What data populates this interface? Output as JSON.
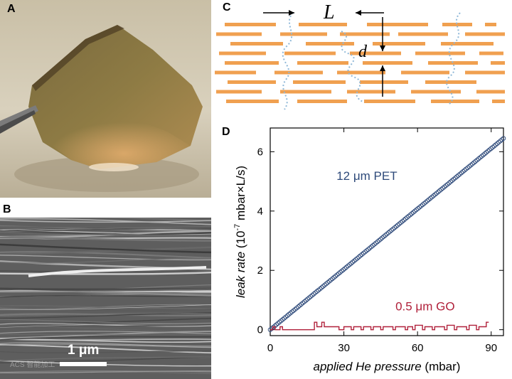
{
  "panels": {
    "a": "A",
    "b": "B",
    "c": "C",
    "d": "D"
  },
  "panel_b": {
    "scalebar_label": "1 μm",
    "watermark": "ACS 智能加工"
  },
  "panel_c": {
    "label_L": "L",
    "label_d": "d",
    "flake_color": "#F0A050",
    "path_color": "#8FB8D8"
  },
  "chart_data": {
    "type": "line",
    "xlabel_italic": "applied He pressure",
    "xlabel_unit": "(mbar)",
    "ylabel_italic": "leak rate",
    "ylabel_unit_pre": "(10",
    "ylabel_unit_exp": "-7",
    "ylabel_unit_post": " mbar×L/s)",
    "xlim": [
      0,
      95
    ],
    "ylim": [
      -0.2,
      6.8
    ],
    "xticks": [
      "0",
      "30",
      "60",
      "90"
    ],
    "yticks": [
      "0",
      "2",
      "4",
      "6"
    ],
    "xtick_values": [
      0,
      30,
      60,
      90
    ],
    "ytick_values": [
      0,
      2,
      4,
      6
    ],
    "series": [
      {
        "name": "12 μm PET",
        "color": "#2E4A7A",
        "marker": "circle",
        "x": [
          0,
          95
        ],
        "y": [
          0,
          6.45
        ]
      },
      {
        "name": "0.5 μm GO",
        "color": "#B0203A",
        "marker": "step",
        "x": [
          0,
          1,
          2,
          4,
          5,
          9,
          17,
          18,
          19,
          21,
          22,
          27,
          28,
          30,
          33,
          34,
          37,
          38,
          41,
          42,
          45,
          46,
          50,
          51,
          55,
          56,
          58,
          59,
          62,
          63,
          66,
          67,
          71,
          72,
          75,
          76,
          80,
          81,
          84,
          85,
          88,
          89
        ],
        "y": [
          0,
          0.1,
          0,
          0.1,
          0,
          0,
          0,
          0.25,
          0.1,
          0.25,
          0.1,
          0.1,
          0,
          0.1,
          0,
          0.1,
          0,
          0.1,
          0,
          0.1,
          0,
          0.1,
          0,
          0.1,
          0,
          0.1,
          0,
          0.15,
          0,
          0.1,
          0,
          0.1,
          0,
          0.15,
          0,
          0.1,
          0,
          0.15,
          0,
          0.1,
          0.25,
          0.25
        ]
      }
    ]
  }
}
